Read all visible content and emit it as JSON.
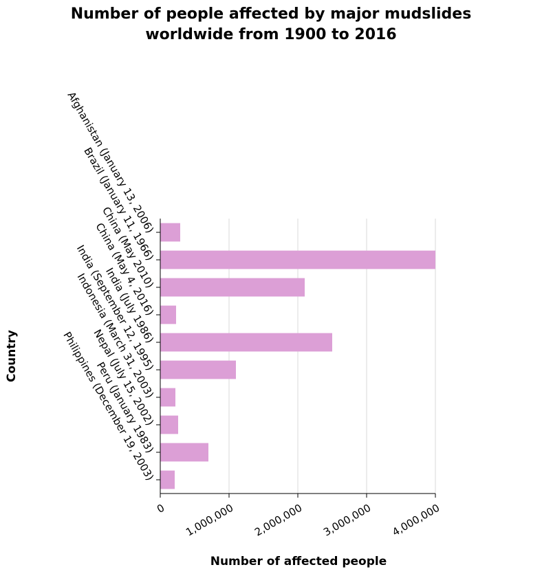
{
  "chart_data": {
    "type": "bar",
    "orientation": "horizontal",
    "title_lines": [
      "Number of people affected by major mudslides",
      "worldwide from 1900 to 2016"
    ],
    "xlabel": "Number of affected people",
    "ylabel": "Country",
    "xlim": [
      0,
      4000000
    ],
    "xticks": [
      0,
      1000000,
      2000000,
      3000000,
      4000000
    ],
    "xtick_labels": [
      "0",
      "1,000,000",
      "2,000,000",
      "3,000,000",
      "4,000,000"
    ],
    "grid": true,
    "bar_color": "#dc9fd6",
    "categories": [
      "Afghanistan (January 13, 2006)",
      "Brazil (January 11, 1966)",
      "China (May 2010)",
      "China (May 4, 2016)",
      "India (July 1986)",
      "India (September 12, 1995)",
      "Indonesia (March 31, 2003)",
      "Nepal (July 15, 2002)",
      "Peru (January 1983)",
      "Philippines (December 19, 2003)"
    ],
    "values": [
      290000,
      4000000,
      2100000,
      230000,
      2500000,
      1100000,
      220000,
      260000,
      700000,
      210000
    ]
  }
}
